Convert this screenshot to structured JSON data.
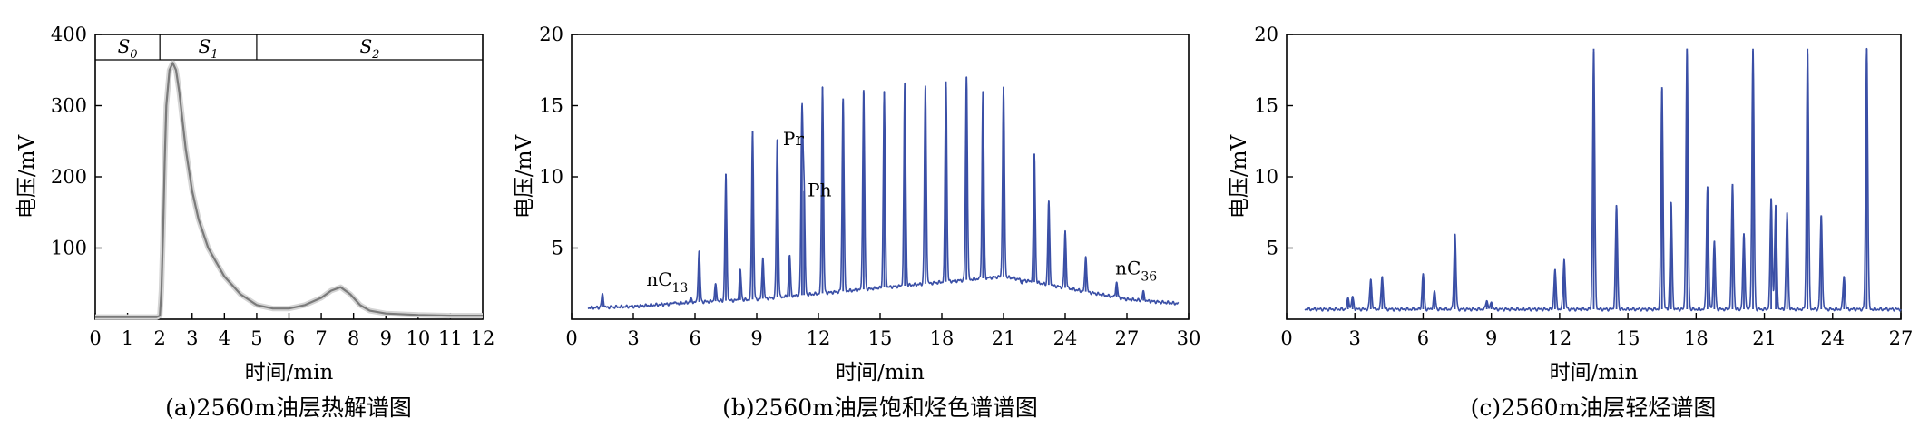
{
  "chart_data": [
    {
      "type": "line",
      "caption": "(a)2560m油层热解谱图",
      "xlabel": "时间/min",
      "ylabel": "电压/mV",
      "xlim": [
        0,
        12
      ],
      "ylim": [
        0,
        400
      ],
      "xticks": [
        0,
        1,
        2,
        3,
        4,
        5,
        6,
        7,
        8,
        9,
        10,
        11,
        12
      ],
      "yticks": [
        100,
        200,
        300,
        400
      ],
      "color": "#7a7a7a",
      "segments": [
        {
          "label": "S",
          "sub": "0",
          "from": 0,
          "to": 2
        },
        {
          "label": "S",
          "sub": "1",
          "from": 2,
          "to": 5
        },
        {
          "label": "S",
          "sub": "2",
          "from": 5,
          "to": 12
        }
      ],
      "x": [
        0,
        0.5,
        1.0,
        1.5,
        1.9,
        2.0,
        2.05,
        2.1,
        2.15,
        2.2,
        2.3,
        2.4,
        2.5,
        2.6,
        2.7,
        2.8,
        3.0,
        3.2,
        3.5,
        4.0,
        4.5,
        5.0,
        5.5,
        6.0,
        6.5,
        7.0,
        7.3,
        7.6,
        7.9,
        8.2,
        8.5,
        9.0,
        10.0,
        11.0,
        12.0
      ],
      "y": [
        3,
        3,
        3,
        3,
        3,
        5,
        40,
        120,
        220,
        300,
        350,
        360,
        350,
        320,
        280,
        240,
        180,
        140,
        100,
        60,
        35,
        20,
        15,
        15,
        20,
        30,
        40,
        45,
        35,
        20,
        12,
        8,
        6,
        5,
        5
      ]
    },
    {
      "type": "line",
      "caption": "(b)2560m油层饱和烃色谱谱图",
      "xlabel": "时间/min",
      "ylabel": "电压/mV",
      "xlim": [
        0,
        30
      ],
      "ylim": [
        0,
        20
      ],
      "xticks": [
        0,
        3,
        6,
        9,
        12,
        15,
        18,
        21,
        24,
        27,
        30
      ],
      "yticks": [
        5,
        10,
        15,
        20
      ],
      "color": "#3a4fa6",
      "baseline": {
        "x": [
          0.8,
          3,
          6,
          9,
          12,
          15,
          18,
          21,
          24,
          27,
          29.5
        ],
        "y": [
          0.8,
          0.9,
          1.2,
          1.4,
          1.8,
          2.2,
          2.6,
          3.0,
          2.2,
          1.4,
          1.1
        ]
      },
      "peaks": {
        "x": [
          1.5,
          5.0,
          5.8,
          6.2,
          7.0,
          7.5,
          8.2,
          8.8,
          9.3,
          10.0,
          10.6,
          11.2,
          11.3,
          12.2,
          13.2,
          14.2,
          15.2,
          16.2,
          17.2,
          18.2,
          19.2,
          20.0,
          21.0,
          21.9,
          22.5,
          23.2,
          24.0,
          25.0,
          26.5,
          27.8
        ],
        "y": [
          1.8,
          1.2,
          1.5,
          4.8,
          2.5,
          10.2,
          3.5,
          13.2,
          4.3,
          12.6,
          4.5,
          14.5,
          9.0,
          16.3,
          15.5,
          16.1,
          16.0,
          16.6,
          16.4,
          16.7,
          17.0,
          16.0,
          16.3,
          2.5,
          11.6,
          8.3,
          6.2,
          4.4,
          2.6,
          2.0
        ]
      },
      "annotations": [
        {
          "label": "Pr",
          "x": 10.1,
          "y": 12.6
        },
        {
          "label": "Ph",
          "x": 11.3,
          "y": 9.0
        },
        {
          "label": "nC",
          "sub": "13",
          "x": 5.0,
          "y": 1.2
        },
        {
          "label": "nC",
          "sub": "36",
          "x": 27.8,
          "y": 2.0
        }
      ]
    },
    {
      "type": "line",
      "caption": "(c)2560m油层轻烃谱图",
      "xlabel": "时间/min",
      "ylabel": "电压/mV",
      "xlim": [
        0,
        27
      ],
      "ylim": [
        0,
        20
      ],
      "xticks": [
        0,
        3,
        6,
        9,
        12,
        15,
        18,
        21,
        24,
        27
      ],
      "yticks": [
        5,
        10,
        15,
        20
      ],
      "color": "#3a4fa6",
      "baseline": {
        "x": [
          0.8,
          27
        ],
        "y": [
          0.7,
          0.7
        ]
      },
      "peaks": {
        "x": [
          2.7,
          2.9,
          3.7,
          4.2,
          6.0,
          6.5,
          7.4,
          8.8,
          9.0,
          11.8,
          12.2,
          13.5,
          14.5,
          16.5,
          16.9,
          17.6,
          18.5,
          18.8,
          19.6,
          20.1,
          20.5,
          21.3,
          21.5,
          22.0,
          22.9,
          23.5,
          24.5,
          25.5
        ],
        "y": [
          1.5,
          1.6,
          2.8,
          3.0,
          3.2,
          2.0,
          6.0,
          1.3,
          1.2,
          3.5,
          4.2,
          19.0,
          8.0,
          16.3,
          8.2,
          19.0,
          9.3,
          5.5,
          9.5,
          6.0,
          19.0,
          8.5,
          8.0,
          7.5,
          19.0,
          7.3,
          3.0,
          19.0
        ]
      }
    }
  ]
}
